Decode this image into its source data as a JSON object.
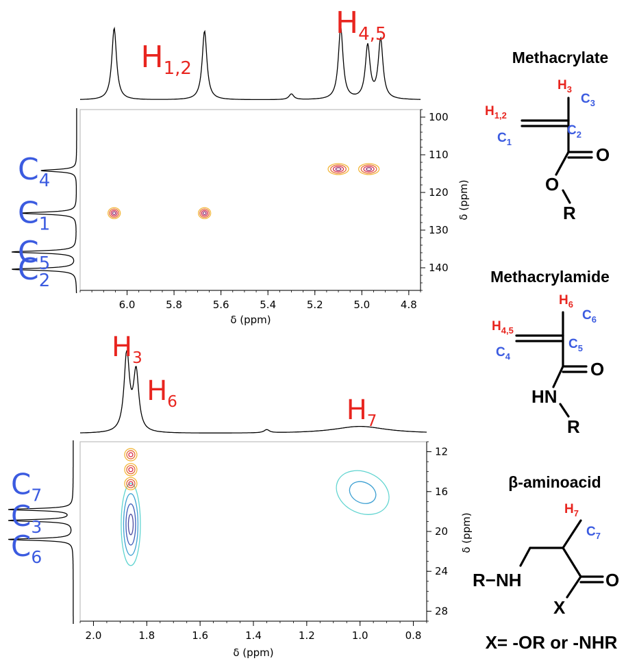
{
  "chart_data": [
    {
      "type": "heatmap",
      "title": "",
      "xlabel": "δ (ppm)",
      "ylabel": "δ (ppm)",
      "xlim": [
        6.2,
        4.75
      ],
      "ylim": [
        98,
        146
      ],
      "x_ticks": [
        "6.0",
        "5.8",
        "5.6",
        "5.4",
        "5.2",
        "5.0",
        "4.8"
      ],
      "y_ticks": [
        "100",
        "110",
        "120",
        "130",
        "140"
      ],
      "top_projection_labels": [
        {
          "text": "H",
          "sub": "1,2",
          "x": 5.86
        },
        {
          "text": "H",
          "sub": "4,5",
          "x": 5.03
        }
      ],
      "top_projection_peaks": [
        {
          "x": 6.055,
          "height": 1.0
        },
        {
          "x": 5.67,
          "height": 0.96
        },
        {
          "x": 5.3,
          "height": 0.08
        },
        {
          "x": 5.09,
          "height": 1.0
        },
        {
          "x": 4.975,
          "height": 0.74
        },
        {
          "x": 4.92,
          "height": 0.83
        }
      ],
      "side_projection_labels": [
        {
          "text": "C",
          "sub": "4",
          "y": 114
        },
        {
          "text": "C",
          "sub": "1",
          "y": 125.5
        },
        {
          "text": "C",
          "sub": "5",
          "y": 136
        },
        {
          "text": "C",
          "sub": "2",
          "y": 140.5
        }
      ],
      "side_projection_peaks": [
        {
          "y": 114.2,
          "height": 0.55
        },
        {
          "y": 125.5,
          "height": 0.85
        },
        {
          "y": 135.8,
          "height": 1.0
        },
        {
          "y": 140.4,
          "height": 1.0
        }
      ],
      "cross_peaks": [
        {
          "x": 6.055,
          "y": 125.5
        },
        {
          "x": 5.67,
          "y": 125.5
        },
        {
          "x": 5.1,
          "y": 113.8
        },
        {
          "x": 4.97,
          "y": 113.8
        }
      ]
    },
    {
      "type": "heatmap",
      "title": "",
      "xlabel": "δ (ppm)",
      "ylabel": "δ (ppm)",
      "xlim": [
        2.05,
        0.75
      ],
      "ylim": [
        11,
        29
      ],
      "x_ticks": [
        "2.0",
        "1.8",
        "1.6",
        "1.4",
        "1.2",
        "1.0",
        "0.8"
      ],
      "y_ticks": [
        "12",
        "16",
        "20",
        "24",
        "28"
      ],
      "top_projection_labels": [
        {
          "text": "H",
          "sub": "3",
          "x": 1.87
        },
        {
          "text": "H",
          "sub": "6",
          "x": 1.79
        },
        {
          "text": "H",
          "sub": "7",
          "x": 1.0
        }
      ],
      "top_projection_peaks": [
        {
          "x": 1.875,
          "height": 1.0
        },
        {
          "x": 1.84,
          "height": 0.75
        },
        {
          "x": 1.35,
          "height": 0.04
        },
        {
          "x": 1.0,
          "height": 0.09
        }
      ],
      "side_projection_labels": [
        {
          "text": "C",
          "sub": "7",
          "y": 15.3
        },
        {
          "text": "C",
          "sub": "3",
          "y": 18.5
        },
        {
          "text": "C",
          "sub": "6",
          "y": 21.5
        }
      ],
      "side_projection_peaks": [
        {
          "y": 17.8,
          "height": 1.0
        },
        {
          "y": 18.9,
          "height": 1.0
        },
        {
          "y": 20.8,
          "height": 1.0
        }
      ],
      "cross_peaks": [
        {
          "x": 1.86,
          "y": 19.3
        },
        {
          "x": 1.86,
          "y": 15.2
        },
        {
          "x": 1.86,
          "y": 13.8
        },
        {
          "x": 1.86,
          "y": 12.3
        },
        {
          "x": 0.99,
          "y": 16.1
        }
      ]
    }
  ],
  "structures": [
    {
      "title": "Methacrylate",
      "atoms": {
        "o_dbl": "O",
        "o_single": "O",
        "r": "R"
      },
      "h_labels": {
        "top": {
          "t": "H",
          "s": "3"
        },
        "left": {
          "t": "H",
          "s": "1,2"
        }
      },
      "c_labels": {
        "top": {
          "t": "C",
          "s": "3"
        },
        "mid": {
          "t": "C",
          "s": "2"
        },
        "left": {
          "t": "C",
          "s": "1"
        }
      }
    },
    {
      "title": "Methacrylamide",
      "atoms": {
        "o_dbl": "O",
        "nh": "HN",
        "r": "R"
      },
      "h_labels": {
        "top": {
          "t": "H",
          "s": "6"
        },
        "left": {
          "t": "H",
          "s": "4,5"
        }
      },
      "c_labels": {
        "top": {
          "t": "C",
          "s": "6"
        },
        "mid": {
          "t": "C",
          "s": "5"
        },
        "left": {
          "t": "C",
          "s": "4"
        }
      }
    },
    {
      "title": "β-aminoacid",
      "atoms": {
        "o_dbl": "O",
        "rnh": "R−NH",
        "x": "X"
      },
      "h_labels": {
        "top": {
          "t": "H",
          "s": "7"
        }
      },
      "c_labels": {
        "top": {
          "t": "C",
          "s": "7"
        }
      },
      "note": "X= -OR or -NHR"
    }
  ],
  "colors": {
    "h_label": "#e8251f",
    "c_label": "#3b5be0",
    "contour_positive": [
      "#f3b73c",
      "#e66a33",
      "#d62a4c",
      "#8a2a6a"
    ],
    "contour_negative": [
      "#5fd4d0",
      "#3c9fd2",
      "#3b5bb8",
      "#4a4aa0"
    ]
  }
}
